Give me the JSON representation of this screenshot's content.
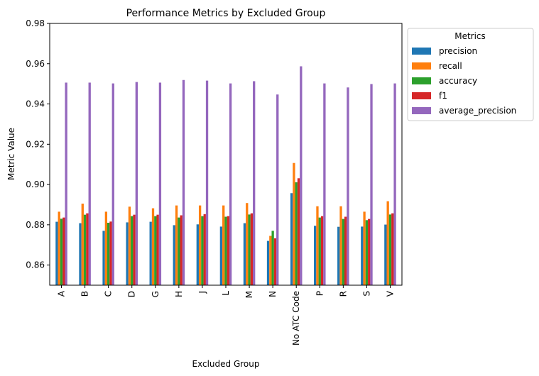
{
  "chart_data": {
    "type": "bar",
    "title": "Performance Metrics by Excluded Group",
    "xlabel": "Excluded Group",
    "ylabel": "Metric Value",
    "ylim": [
      0.85,
      0.98
    ],
    "yticks": [
      "0.86",
      "0.88",
      "0.90",
      "0.92",
      "0.94",
      "0.96",
      "0.98"
    ],
    "legend_title": "Metrics",
    "legend_position": "outside-top-right",
    "categories": [
      "A",
      "B",
      "C",
      "D",
      "G",
      "H",
      "J",
      "L",
      "M",
      "N",
      "No ATC Code",
      "P",
      "R",
      "S",
      "V"
    ],
    "series": [
      {
        "name": "precision",
        "color": "#1f77b4",
        "values": [
          0.8815,
          0.8808,
          0.877,
          0.8812,
          0.8815,
          0.8798,
          0.8802,
          0.8791,
          0.8808,
          0.872,
          0.8957,
          0.8795,
          0.879,
          0.8791,
          0.8801
        ]
      },
      {
        "name": "recall",
        "color": "#ff7f0e",
        "values": [
          0.8865,
          0.8905,
          0.8865,
          0.889,
          0.8882,
          0.8896,
          0.8896,
          0.8896,
          0.8908,
          0.8745,
          0.9107,
          0.8892,
          0.8892,
          0.8865,
          0.8917
        ]
      },
      {
        "name": "accuracy",
        "color": "#2ca02c",
        "values": [
          0.883,
          0.885,
          0.881,
          0.8843,
          0.8843,
          0.8836,
          0.8843,
          0.884,
          0.8851,
          0.877,
          0.9011,
          0.8836,
          0.8829,
          0.8823,
          0.8851
        ]
      },
      {
        "name": "f1",
        "color": "#d62728",
        "values": [
          0.8836,
          0.8857,
          0.8816,
          0.885,
          0.885,
          0.8847,
          0.8853,
          0.8843,
          0.8857,
          0.8733,
          0.9031,
          0.8843,
          0.884,
          0.8829,
          0.8857
        ]
      },
      {
        "name": "average_precision",
        "color": "#9467bd",
        "values": [
          0.9506,
          0.9506,
          0.9502,
          0.9509,
          0.9506,
          0.9519,
          0.9516,
          0.9502,
          0.9513,
          0.9447,
          0.9587,
          0.9502,
          0.9482,
          0.9499,
          0.9502
        ]
      }
    ]
  }
}
